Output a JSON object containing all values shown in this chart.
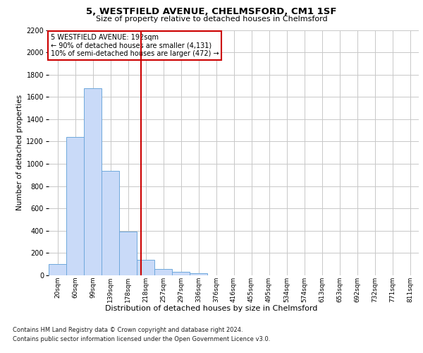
{
  "title1": "5, WESTFIELD AVENUE, CHELMSFORD, CM1 1SF",
  "title2": "Size of property relative to detached houses in Chelmsford",
  "xlabel": "Distribution of detached houses by size in Chelmsford",
  "ylabel": "Number of detached properties",
  "categories": [
    "20sqm",
    "60sqm",
    "99sqm",
    "139sqm",
    "178sqm",
    "218sqm",
    "257sqm",
    "297sqm",
    "336sqm",
    "376sqm",
    "416sqm",
    "455sqm",
    "495sqm",
    "534sqm",
    "574sqm",
    "613sqm",
    "653sqm",
    "692sqm",
    "732sqm",
    "771sqm",
    "811sqm"
  ],
  "values": [
    100,
    1240,
    1680,
    940,
    390,
    140,
    60,
    30,
    20,
    0,
    0,
    0,
    0,
    0,
    0,
    0,
    0,
    0,
    0,
    0,
    0
  ],
  "bar_color": "#c9daf8",
  "bar_edge_color": "#6fa8dc",
  "vline_x": 4.75,
  "vline_color": "#cc0000",
  "annotation_line1": "5 WESTFIELD AVENUE: 192sqm",
  "annotation_line2": "← 90% of detached houses are smaller (4,131)",
  "annotation_line3": "10% of semi-detached houses are larger (472) →",
  "annotation_box_color": "#ffffff",
  "annotation_box_edge": "#cc0000",
  "ylim": [
    0,
    2200
  ],
  "yticks": [
    0,
    200,
    400,
    600,
    800,
    1000,
    1200,
    1400,
    1600,
    1800,
    2000,
    2200
  ],
  "grid_color": "#c8c8c8",
  "bg_color": "#ffffff",
  "footer1": "Contains HM Land Registry data © Crown copyright and database right 2024.",
  "footer2": "Contains public sector information licensed under the Open Government Licence v3.0."
}
